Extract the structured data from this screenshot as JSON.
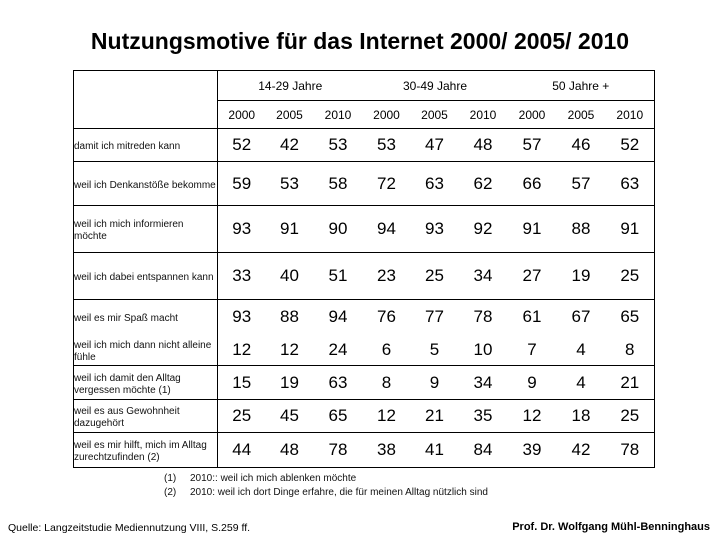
{
  "title": "Nutzungsmotive für das Internet 2000/ 2005/ 2010",
  "age_groups": [
    "14-29 Jahre",
    "30-49 Jahre",
    "50 Jahre +"
  ],
  "years": [
    "2000",
    "2005",
    "2010",
    "2000",
    "2005",
    "2010",
    "2000",
    "2005",
    "2010"
  ],
  "rows": [
    {
      "label": "damit ich mitreden kann",
      "values": [
        "52",
        "42",
        "53",
        "53",
        "47",
        "48",
        "57",
        "46",
        "52"
      ]
    },
    {
      "label": "weil ich Denkanstöße bekomme",
      "values": [
        "59",
        "53",
        "58",
        "72",
        "63",
        "62",
        "66",
        "57",
        "63"
      ]
    },
    {
      "label": "weil ich mich informieren möchte",
      "values": [
        "93",
        "91",
        "90",
        "94",
        "93",
        "92",
        "91",
        "88",
        "91"
      ]
    },
    {
      "label": "weil ich dabei entspannen kann",
      "values": [
        "33",
        "40",
        "51",
        "23",
        "25",
        "34",
        "27",
        "19",
        "25"
      ]
    },
    {
      "label": "weil es mir Spaß macht",
      "values": [
        "93",
        "88",
        "94",
        "76",
        "77",
        "78",
        "61",
        "67",
        "65"
      ]
    },
    {
      "label": "weil ich mich dann nicht alleine fühle",
      "values": [
        "12",
        "12",
        "24",
        "6",
        "5",
        "10",
        "7",
        "4",
        "8"
      ]
    },
    {
      "label": "weil ich damit den Alltag vergessen möchte (1)",
      "values": [
        "15",
        "19",
        "63",
        "8",
        "9",
        "34",
        "9",
        "4",
        "21"
      ]
    },
    {
      "label": "weil es aus Gewohnheit dazugehört",
      "values": [
        "25",
        "45",
        "65",
        "12",
        "21",
        "35",
        "12",
        "18",
        "25"
      ]
    },
    {
      "label": "weil es mir hilft, mich im Alltag zurechtzufinden (2)",
      "values": [
        "44",
        "48",
        "78",
        "38",
        "41",
        "84",
        "39",
        "42",
        "78"
      ]
    }
  ],
  "footnotes": [
    {
      "num": "(1)",
      "text": "2010:: weil ich mich ablenken möchte"
    },
    {
      "num": "(2)",
      "text": "2010: weil ich dort Dinge erfahre, die für meinen Alltag nützlich sind"
    }
  ],
  "source": "Quelle: Langzeitstudie Mediennutzung VIII, S.259 ff.",
  "author": "Prof. Dr. Wolfgang Mühl-Benninghaus"
}
